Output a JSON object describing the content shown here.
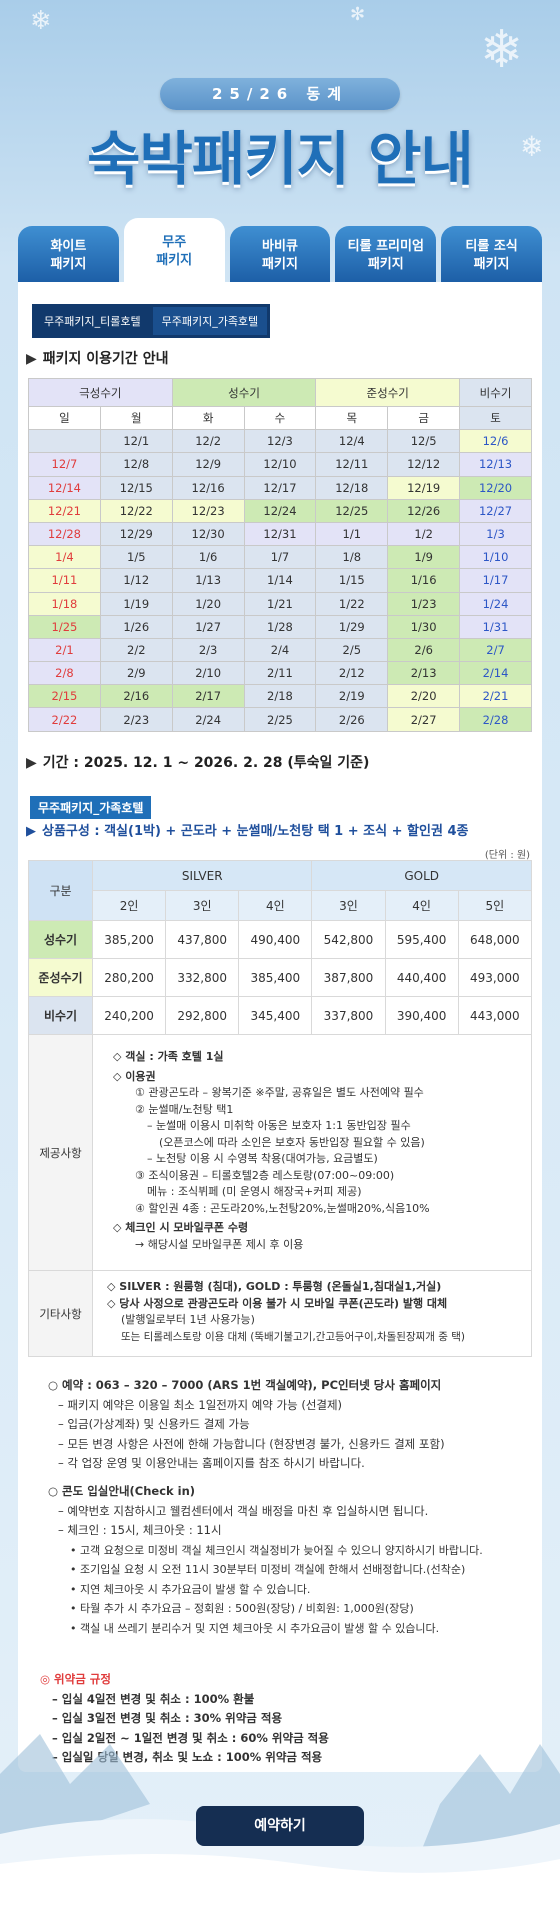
{
  "header": {
    "season_label": "25/26 동계",
    "title": "숙박패키지 안내"
  },
  "tabs": [
    {
      "label": "화이트\n패키지"
    },
    {
      "label": "무주\n패키지"
    },
    {
      "label": "바비큐\n패키지"
    },
    {
      "label": "티롤 프리미엄\n패키지"
    },
    {
      "label": "티롤 조식\n패키지"
    }
  ],
  "subtabs": [
    "무주패키지_티롤호텔",
    "무주패키지_가족호텔"
  ],
  "period_section": {
    "title": "패키지 이용기간 안내",
    "legend": [
      "극성수기",
      "성수기",
      "준성수기",
      "비수기"
    ],
    "weekdays": [
      "일",
      "월",
      "화",
      "수",
      "목",
      "금",
      "토"
    ],
    "rows": [
      [
        "",
        "12/1",
        "12/2",
        "12/3",
        "12/4",
        "12/5",
        "12/6"
      ],
      [
        "12/7",
        "12/8",
        "12/9",
        "12/10",
        "12/11",
        "12/12",
        "12/13"
      ],
      [
        "12/14",
        "12/15",
        "12/16",
        "12/17",
        "12/18",
        "12/19",
        "12/20"
      ],
      [
        "12/21",
        "12/22",
        "12/23",
        "12/24",
        "12/25",
        "12/26",
        "12/27"
      ],
      [
        "12/28",
        "12/29",
        "12/30",
        "12/31",
        "1/1",
        "1/2",
        "1/3"
      ],
      [
        "1/4",
        "1/5",
        "1/6",
        "1/7",
        "1/8",
        "1/9",
        "1/10"
      ],
      [
        "1/11",
        "1/12",
        "1/13",
        "1/14",
        "1/15",
        "1/16",
        "1/17"
      ],
      [
        "1/18",
        "1/19",
        "1/20",
        "1/21",
        "1/22",
        "1/23",
        "1/24"
      ],
      [
        "1/25",
        "1/26",
        "1/27",
        "1/28",
        "1/29",
        "1/30",
        "1/31"
      ],
      [
        "2/1",
        "2/2",
        "2/3",
        "2/4",
        "2/5",
        "2/6",
        "2/7"
      ],
      [
        "2/8",
        "2/9",
        "2/10",
        "2/11",
        "2/12",
        "2/13",
        "2/14"
      ],
      [
        "2/15",
        "2/16",
        "2/17",
        "2/18",
        "2/19",
        "2/20",
        "2/21"
      ],
      [
        "2/22",
        "2/23",
        "2/24",
        "2/25",
        "2/26",
        "2/27",
        "2/28"
      ]
    ],
    "period_text": "기간 : 2025. 12. 1 ~ 2026. 2. 28 (투숙일 기준)"
  },
  "package": {
    "badge": "무주패키지_가족호텔",
    "composition": "상품구성 : 객실(1박) + 곤도라 + 눈썰매/노천탕 택 1 + 조식 + 할인권 4종",
    "unit": "(단위 : 원)",
    "col_group": "구분",
    "silver": "SILVER",
    "gold": "GOLD",
    "persons": [
      "2인",
      "3인",
      "4인",
      "3인",
      "4인",
      "5인"
    ],
    "rows": [
      {
        "label": "성수기",
        "values": [
          "385,200",
          "437,800",
          "490,400",
          "542,800",
          "595,400",
          "648,000"
        ]
      },
      {
        "label": "준성수기",
        "values": [
          "280,200",
          "332,800",
          "385,400",
          "387,800",
          "440,400",
          "493,000"
        ]
      },
      {
        "label": "비수기",
        "values": [
          "240,200",
          "292,800",
          "345,400",
          "337,800",
          "390,400",
          "443,000"
        ]
      }
    ],
    "provide_label": "제공사항",
    "provide": [
      "◇ 객실 : 가족 호텔 1실",
      "◇ 이용권",
      "① 관광곤도라 – 왕복기준 ※주말, 공휴일은 별도 사전예약 필수",
      "② 눈썰매/노천탕 택1",
      "– 눈썰매 이용시 미취학 아동은 보호자 1:1 동반입장 필수",
      "(오픈코스에 따라 소인은 보호자 동반입장 필요할 수 있음)",
      "– 노천탕 이용 시 수영복 착용(대여가능, 요금별도)",
      "③ 조식이용권 – 티롤호텔2층 레스토랑(07:00~09:00)",
      "메뉴 : 조식뷔페 (미 운영시 해장국+커피 제공)",
      "④ 할인권 4종 : 곤도라20%,노천탕20%,눈썰매20%,식음10%",
      "◇ 체크인 시 모바일쿠폰 수령",
      "→ 해당시설 모바일쿠폰 제시 후 이용"
    ],
    "etc_label": "기타사항",
    "etc": [
      "◇ SILVER : 원룸형 (침대), GOLD : 투룸형 (온돌실1,침대실1,거실)",
      "◇ 당사 사정으로 관광곤도라 이용 불가 시 모바일 쿠폰(곤도라) 발행 대체",
      "(발행일로부터 1년 사용가능)",
      "또는 티롤레스토랑 이용 대체 (뚝배기불고기,간고등어구이,차돌된장찌개 중 택)"
    ]
  },
  "info": {
    "reserve_title": "○ 예약 : 063 – 320 – 7000 (ARS 1번 객실예약), PC인터넷 당사 홈페이지",
    "reserve": [
      "– 패키지 예약은 이용일 최소 1일전까지 예약 가능 (선결제)",
      "– 입금(가상계좌) 및 신용카드 결제 가능",
      "– 모든 변경 사항은 사전에 한해 가능합니다 (현장변경 불가, 신용카드 결제 포함)",
      "– 각 업장 운영 및 이용안내는 홈페이지를 참조 하시기 바랍니다."
    ],
    "checkin_title": "○ 콘도 입실안내(Check in)",
    "checkin": [
      "– 예약번호 지참하시고 웰컴센터에서 객실 배정을 마친 후 입실하시면 됩니다.",
      "– 체크인 : 15시, 체크아웃 : 11시",
      "• 고객 요청으로 미정비 객실 체크인시 객실정비가 늦어질 수 있으니 양지하시기 바랍니다.",
      "• 조기입실 요청 시 오전 11시 30분부터 미정비 객실에 한해서 선배정합니다.(선착순)",
      "• 지연 체크아웃 시 추가요금이 발생 할 수   있습니다.",
      "• 타월 추가 시 추가요금   – 정회원 : 500원(장당) / 비회원: 1,000원(장당)",
      "• 객실 내 쓰레기 분리수거 및 지연 체크아웃 시 추가요금이 발생 할 수 있습니다."
    ],
    "penalty_title": "◎ 위약금 규정",
    "penalty": [
      "– 입실 4일전 변경 및 취소 : 100% 환불",
      "– 입실 3일전 변경 및 취소 : 30% 위약금 적용",
      "– 입실 2일전 ~ 1일전 변경 및 취소 : 60% 위약금 적용",
      "– 입실일 당일 변경, 취소 및 노쇼 : 100% 위약금 적용"
    ]
  },
  "reserve_button": "예약하기",
  "colors": {
    "peak": "#e3e3f7",
    "high": "#cdeab4",
    "mid": "#f5fbd0",
    "low": "#dbe4f0",
    "red": "#e03c3c",
    "blue": "#2c56c6",
    "brand": "#1f6fb8",
    "button": "#152e52"
  }
}
